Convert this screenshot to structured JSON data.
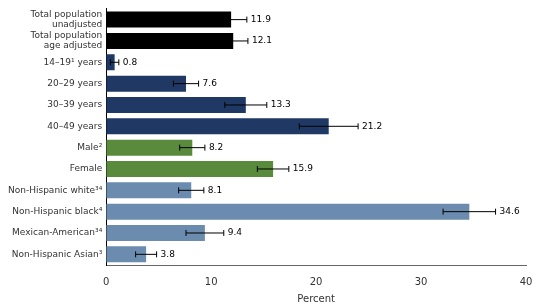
{
  "chart_data": {
    "type": "bar",
    "orientation": "horizontal",
    "categories": [
      "Total population\nunadjusted",
      "Total population\nage adjusted",
      "14–19¹ years",
      "20–29 years",
      "30–39 years",
      "40–49 years",
      "Male²",
      "Female",
      "Non-Hispanic white³⁴",
      "Non-Hispanic black⁴",
      "Mexican-American³⁴",
      "Non-Hispanic Asian³"
    ],
    "values": [
      11.9,
      12.1,
      0.8,
      7.6,
      13.3,
      21.2,
      8.2,
      15.9,
      8.1,
      34.6,
      9.4,
      3.8
    ],
    "errors_low": [
      1.5,
      1.4,
      0.4,
      1.2,
      2.0,
      2.8,
      1.2,
      1.5,
      1.2,
      2.5,
      1.8,
      1.0
    ],
    "errors_high": [
      1.5,
      1.4,
      0.4,
      1.2,
      2.0,
      2.8,
      1.2,
      1.5,
      1.2,
      2.5,
      1.8,
      1.0
    ],
    "colors": [
      "#000000",
      "#000000",
      "#1f3864",
      "#1f3864",
      "#1f3864",
      "#1f3864",
      "#5a8a3c",
      "#5a8a3c",
      "#6b8cae",
      "#6b8cae",
      "#6b8cae",
      "#6b8cae"
    ],
    "xlabel": "Percent",
    "xlim": [
      0,
      40
    ],
    "xticks": [
      0,
      10,
      20,
      30,
      40
    ],
    "grid": false,
    "data_labels": true
  }
}
